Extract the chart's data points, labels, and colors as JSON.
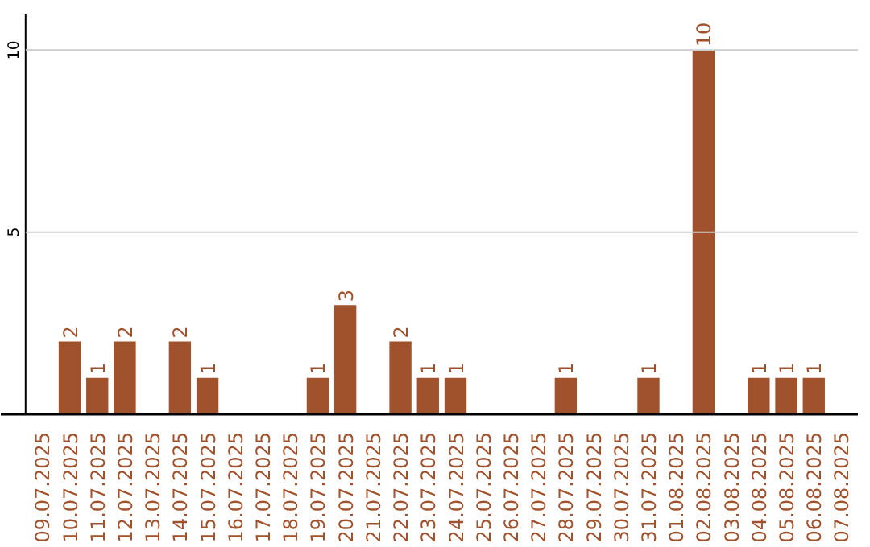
{
  "chart_data": {
    "type": "bar",
    "categories": [
      "09.07.2025",
      "10.07.2025",
      "11.07.2025",
      "12.07.2025",
      "13.07.2025",
      "14.07.2025",
      "15.07.2025",
      "16.07.2025",
      "17.07.2025",
      "18.07.2025",
      "19.07.2025",
      "20.07.2025",
      "21.07.2025",
      "22.07.2025",
      "23.07.2025",
      "24.07.2025",
      "25.07.2025",
      "26.07.2025",
      "27.07.2025",
      "28.07.2025",
      "29.07.2025",
      "30.07.2025",
      "31.07.2025",
      "01.08.2025",
      "02.08.2025",
      "03.08.2025",
      "04.08.2025",
      "05.08.2025",
      "06.08.2025",
      "07.08.2025"
    ],
    "values": [
      0,
      2,
      1,
      2,
      0,
      2,
      1,
      0,
      0,
      0,
      1,
      3,
      0,
      2,
      1,
      1,
      0,
      0,
      0,
      1,
      0,
      0,
      1,
      0,
      10,
      0,
      1,
      1,
      1,
      0
    ],
    "value_labels": [
      null,
      "2",
      "1",
      "2",
      null,
      "2",
      "1",
      null,
      null,
      null,
      "1",
      "3",
      null,
      "2",
      "1",
      "1",
      null,
      null,
      null,
      "1",
      null,
      null,
      "1",
      null,
      "10",
      null,
      "1",
      "1",
      "1",
      null
    ],
    "color": "#a0522d",
    "ylim": [
      0,
      11
    ],
    "yticks": [
      5,
      10
    ],
    "grid": "y"
  }
}
